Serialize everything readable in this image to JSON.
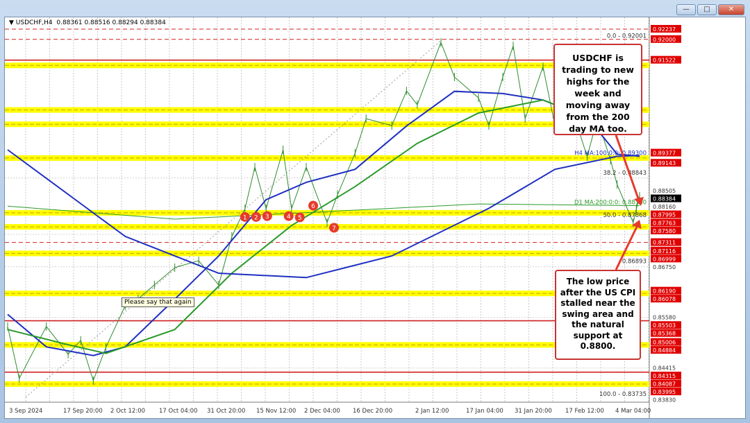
{
  "window": {
    "title_symbol": "USDCHF,H4",
    "ohlc": "0.88361 0.88516 0.88294 0.88384",
    "buttons": [
      "minimize",
      "maximize",
      "close"
    ]
  },
  "chart_data": {
    "type": "line",
    "title": "USDCHF,H4 0.88361 0.88516 0.88294 0.88384",
    "x_ticks": [
      "3 Sep 2024",
      "17 Sep 20:00",
      "2 Oct 12:00",
      "17 Oct 04:00",
      "31 Oct 20:00",
      "15 Nov 12:00",
      "2 Dec 04:00",
      "16 Dec 20:00",
      "2 Jan 12:00",
      "17 Jan 04:00",
      "31 Jan 20:00",
      "17 Feb 12:00",
      "4 Mar 04:00"
    ],
    "ylim": [
      0.8373,
      0.9224
    ],
    "grid": true,
    "series": [
      {
        "name": "USDCHF",
        "color": "#2e8b2e",
        "points": [
          [
            "2024-09-03",
            0.8537
          ],
          [
            "2024-09-06",
            0.8417
          ],
          [
            "2024-09-13",
            0.8537
          ],
          [
            "2024-09-19",
            0.8473
          ],
          [
            "2024-09-23",
            0.8505
          ],
          [
            "2024-09-27",
            0.8412
          ],
          [
            "2024-10-01",
            0.8489
          ],
          [
            "2024-10-07",
            0.8585
          ],
          [
            "2024-10-11",
            0.8601
          ],
          [
            "2024-10-16",
            0.8633
          ],
          [
            "2024-10-22",
            0.8673
          ],
          [
            "2024-10-29",
            0.8689
          ],
          [
            "2024-11-04",
            0.8633
          ],
          [
            "2024-11-08",
            0.8745
          ],
          [
            "2024-11-12",
            0.8809
          ],
          [
            "2024-11-15",
            0.8905
          ],
          [
            "2024-11-19",
            0.8809
          ],
          [
            "2024-11-25",
            0.8945
          ],
          [
            "2024-11-28",
            0.8809
          ],
          [
            "2024-12-03",
            0.8905
          ],
          [
            "2024-12-09",
            0.8777
          ],
          [
            "2024-12-12",
            0.8841
          ],
          [
            "2024-12-17",
            0.8937
          ],
          [
            "2024-12-20",
            0.9017
          ],
          [
            "2024-12-27",
            0.9001
          ],
          [
            "2024-12-31",
            0.9081
          ],
          [
            "2025-01-03",
            0.9049
          ],
          [
            "2025-01-10",
            0.9193
          ],
          [
            "2025-01-14",
            0.9113
          ],
          [
            "2025-01-21",
            0.9065
          ],
          [
            "2025-01-24",
            0.9001
          ],
          [
            "2025-01-28",
            0.9113
          ],
          [
            "2025-01-31",
            0.9185
          ],
          [
            "2025-02-04",
            0.9017
          ],
          [
            "2025-02-10",
            0.9137
          ],
          [
            "2025-02-14",
            0.9001
          ],
          [
            "2025-02-19",
            0.9049
          ],
          [
            "2025-02-24",
            0.8929
          ],
          [
            "2025-02-27",
            0.9017
          ],
          [
            "2025-03-03",
            0.8921
          ],
          [
            "2025-03-05",
            0.8865
          ],
          [
            "2025-03-10",
            0.8777
          ],
          [
            "2025-03-11",
            0.8809
          ],
          [
            "2025-03-12",
            0.8838
          ]
        ]
      },
      {
        "name": "H4 MA:100",
        "color": "#1f2fc0",
        "points": [
          [
            "2024-09-03",
            0.8565
          ],
          [
            "2024-09-13",
            0.849
          ],
          [
            "2024-09-27",
            0.847
          ],
          [
            "2024-10-07",
            0.849
          ],
          [
            "2024-10-22",
            0.86
          ],
          [
            "2024-11-04",
            0.87
          ],
          [
            "2024-11-19",
            0.883
          ],
          [
            "2024-12-03",
            0.887
          ],
          [
            "2024-12-17",
            0.89
          ],
          [
            "2024-12-31",
            0.9
          ],
          [
            "2025-01-14",
            0.908
          ],
          [
            "2025-01-28",
            0.9075
          ],
          [
            "2025-02-10",
            0.906
          ],
          [
            "2025-02-24",
            0.902
          ],
          [
            "2025-03-05",
            0.8935
          ],
          [
            "2025-03-12",
            0.893
          ]
        ]
      },
      {
        "name": "H4 MA:200",
        "color": "#2a9a2a",
        "points": [
          [
            "2024-09-03",
            0.853
          ],
          [
            "2024-09-19",
            0.8495
          ],
          [
            "2024-10-01",
            0.8475
          ],
          [
            "2024-10-22",
            0.853
          ],
          [
            "2024-11-08",
            0.866
          ],
          [
            "2024-11-28",
            0.877
          ],
          [
            "2024-12-17",
            0.886
          ],
          [
            "2025-01-03",
            0.896
          ],
          [
            "2025-01-21",
            0.903
          ],
          [
            "2025-02-10",
            0.906
          ],
          [
            "2025-02-27",
            0.901
          ],
          [
            "2025-03-05",
            0.899
          ]
        ]
      },
      {
        "name": "D1 MA:200",
        "color": "#2a9a2a",
        "points": [
          [
            "2024-09-03",
            0.8815
          ],
          [
            "2024-10-22",
            0.8785
          ],
          [
            "2024-12-03",
            0.88
          ],
          [
            "2025-01-21",
            0.882
          ],
          [
            "2025-03-12",
            0.8816
          ]
        ]
      },
      {
        "name": "long MA",
        "color": "#1f2fc0",
        "points": [
          [
            "2024-09-03",
            0.8945
          ],
          [
            "2024-10-07",
            0.8745
          ],
          [
            "2024-11-04",
            0.866
          ],
          [
            "2024-12-03",
            0.865
          ],
          [
            "2024-12-27",
            0.87
          ],
          [
            "2025-01-24",
            0.881
          ],
          [
            "2025-02-14",
            0.89
          ],
          [
            "2025-03-05",
            0.893
          ],
          [
            "2025-03-12",
            0.8932
          ]
        ]
      }
    ],
    "levels": [
      {
        "price": 0.92237,
        "kind": "red-dash"
      },
      {
        "price": 0.92,
        "kind": "red-dash"
      },
      {
        "price": 0.91522,
        "kind": "red-solid"
      },
      {
        "price": 0.914,
        "kind": "yellow"
      },
      {
        "price": 0.9037,
        "kind": "yellow"
      },
      {
        "price": 0.9004,
        "kind": "yellow"
      },
      {
        "price": 0.8926,
        "kind": "yellow"
      },
      {
        "price": 0.87995,
        "kind": "yellow"
      },
      {
        "price": 0.87672,
        "kind": "yellow"
      },
      {
        "price": 0.87311,
        "kind": "red-dash"
      },
      {
        "price": 0.87058,
        "kind": "yellow"
      },
      {
        "price": 0.86134,
        "kind": "yellow"
      },
      {
        "price": 0.85503,
        "kind": "red-solid"
      },
      {
        "price": 0.84945,
        "kind": "yellow"
      },
      {
        "price": 0.84315,
        "kind": "red-solid"
      },
      {
        "price": 0.84041,
        "kind": "yellow"
      }
    ],
    "price_labels": [
      {
        "text": "0.92237",
        "style": "red"
      },
      {
        "text": "0.92000",
        "style": "red"
      },
      {
        "text": "0.91522",
        "style": "red"
      },
      {
        "text": "0.89377",
        "style": "red"
      },
      {
        "text": "0.89143",
        "style": "red"
      },
      {
        "text": "0.88505",
        "style": "plain"
      },
      {
        "text": "0.88384",
        "style": "black"
      },
      {
        "text": "0.88160",
        "style": "plain"
      },
      {
        "text": "0.87995",
        "style": "red"
      },
      {
        "text": "0.87763",
        "style": "red"
      },
      {
        "text": "0.87580",
        "style": "red"
      },
      {
        "text": "0.87311",
        "style": "red"
      },
      {
        "text": "0.87116",
        "style": "red"
      },
      {
        "text": "0.86999",
        "style": "red"
      },
      {
        "text": "0.86750",
        "style": "plain"
      },
      {
        "text": "0.86190",
        "style": "red"
      },
      {
        "text": "0.86078",
        "style": "red"
      },
      {
        "text": "0.85580",
        "style": "plain"
      },
      {
        "text": "0.85503",
        "style": "red"
      },
      {
        "text": "0.85368",
        "style": "red"
      },
      {
        "text": "0.85006",
        "style": "red"
      },
      {
        "text": "0.84884",
        "style": "red"
      },
      {
        "text": "0.84415",
        "style": "plain"
      },
      {
        "text": "0.84315",
        "style": "red"
      },
      {
        "text": "0.84087",
        "style": "red"
      },
      {
        "text": "0.83995",
        "style": "red"
      },
      {
        "text": "0.83830",
        "style": "plain"
      }
    ],
    "annotations": {
      "fib": [
        {
          "text": "0.0 - 0.92001",
          "price": 0.92001
        },
        {
          "text": "38.2 - 0.88843",
          "price": 0.88843
        },
        {
          "text": "50.0 - 0.87868",
          "price": 0.87868
        },
        {
          "text": "100.0 - 0.83735",
          "price": 0.83735
        }
      ],
      "ma_labels": [
        {
          "text": "H4 MA:100:0:0: 0.89300",
          "price": 0.893,
          "color": "#1f2fc0"
        },
        {
          "text": "D1 MA:200:0:0: 0.88160",
          "price": 0.8816,
          "color": "#2a9a2a"
        }
      ],
      "partial_label": "0.86893",
      "markers": [
        {
          "n": "1",
          "date": "2024-11-12",
          "price": 0.879
        },
        {
          "n": "2",
          "date": "2024-11-13",
          "price": 0.879
        },
        {
          "n": "3",
          "date": "2024-11-19",
          "price": 0.8792
        },
        {
          "n": "4",
          "date": "2024-11-27",
          "price": 0.8792
        },
        {
          "n": "5",
          "date": "2024-11-29",
          "price": 0.8789
        },
        {
          "n": "6",
          "date": "2024-12-05",
          "price": 0.8816
        },
        {
          "n": "7",
          "date": "2024-12-11",
          "price": 0.8765
        }
      ],
      "tooltip": "Please say that again",
      "callout_top": "USDCHF is trading to new highs for the week and moving away from the 200 day MA too.",
      "callout_bottom": "The low price after the US CPI stalled near the swing area and the natural support at 0.8800."
    }
  }
}
